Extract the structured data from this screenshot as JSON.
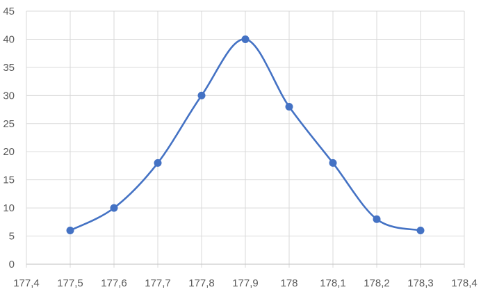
{
  "chart_data": {
    "type": "scatter",
    "title": "",
    "xlabel": "",
    "ylabel": "",
    "xlim": [
      177.4,
      178.4
    ],
    "ylim": [
      0,
      45
    ],
    "x_ticks": [
      177.4,
      177.5,
      177.6,
      177.7,
      177.8,
      177.9,
      178.0,
      178.1,
      178.2,
      178.3,
      178.4
    ],
    "x_tick_labels": [
      "177,4",
      "177,5",
      "177,6",
      "177,7",
      "177,8",
      "177,9",
      "178",
      "178,1",
      "178,2",
      "178,3",
      "178,4"
    ],
    "y_ticks": [
      0,
      5,
      10,
      15,
      20,
      25,
      30,
      35,
      40,
      45
    ],
    "y_tick_labels": [
      "0",
      "5",
      "10",
      "15",
      "20",
      "25",
      "30",
      "35",
      "40",
      "45"
    ],
    "grid": "vertical and horizontal major gridlines",
    "legend": "none",
    "smoothed_line": true,
    "markers": true,
    "color": "#4472c4",
    "series": [
      {
        "x": [
          177.5,
          177.6,
          177.7,
          177.8,
          177.9,
          178.0,
          178.1,
          178.2,
          178.3
        ],
        "y": [
          6,
          10,
          18,
          30,
          40,
          28,
          18,
          8,
          6
        ]
      }
    ]
  }
}
